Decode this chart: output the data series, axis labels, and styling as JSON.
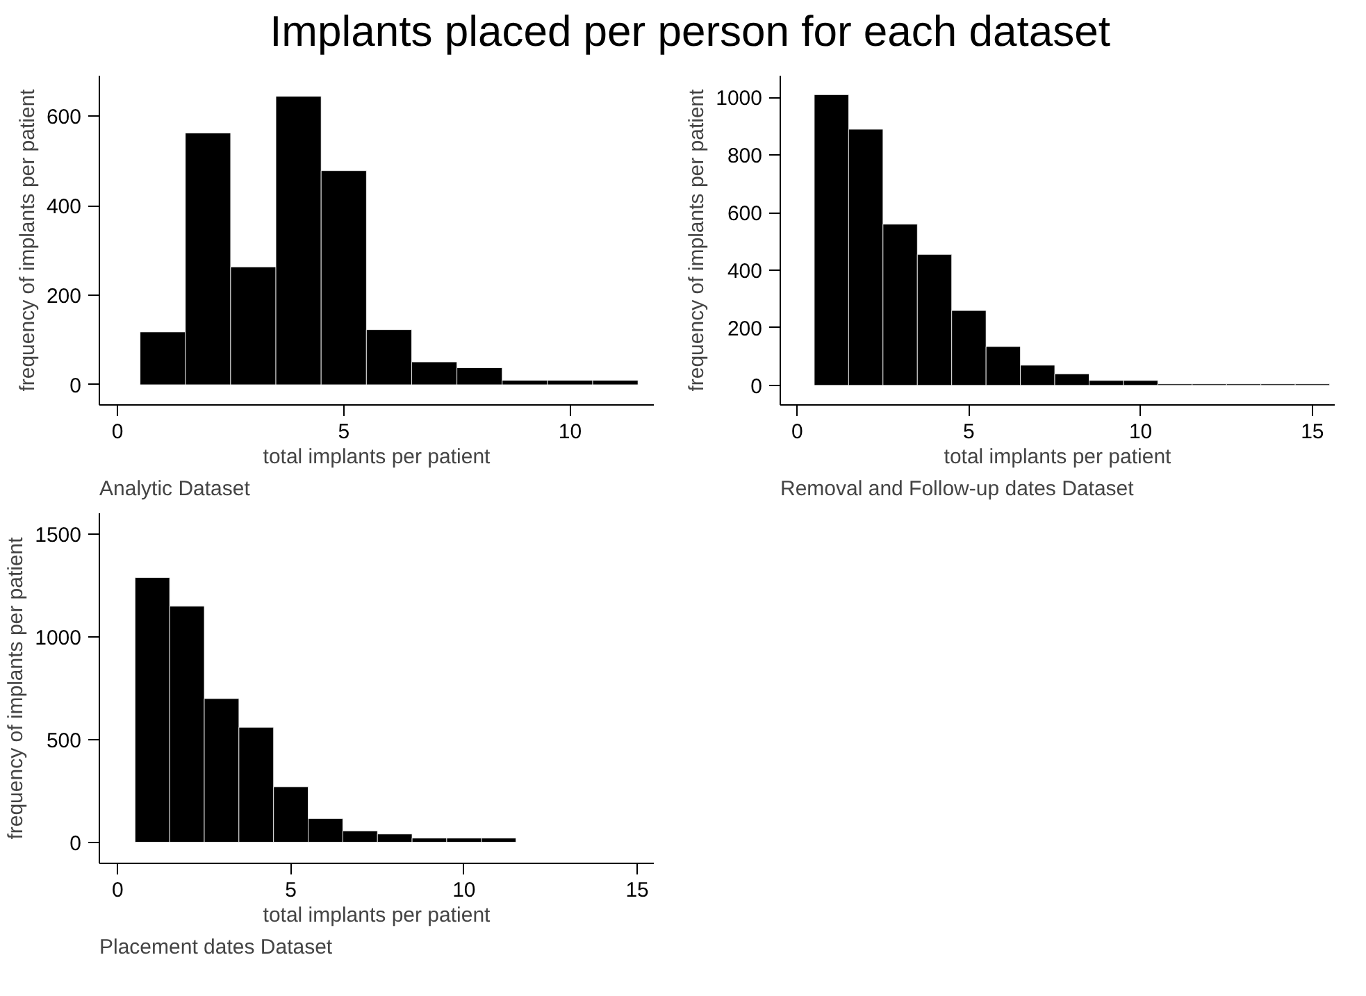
{
  "chart_data": [
    {
      "type": "histogram",
      "title": "Implants placed per person for each dataset",
      "xlabel": "total implants per patient",
      "ylabel": "frequency of implants per patient",
      "annotations": [
        "Analytic Dataset"
      ],
      "bins": [
        0.5,
        1.5,
        2.5,
        3.5,
        4.5,
        5.5,
        6.5,
        7.5,
        8.5,
        9.5,
        10.5,
        11.5
      ],
      "values": [
        118,
        562,
        263,
        644,
        478,
        123,
        51,
        38,
        10,
        10,
        10
      ],
      "color": "#000000",
      "xlim": [
        -0.4,
        11.85
      ],
      "xticks": [
        0,
        5,
        10
      ],
      "ylim": [
        -45,
        690
      ],
      "yticks": [
        0,
        200,
        400,
        600
      ],
      "grid": false
    },
    {
      "type": "histogram",
      "xlabel": "total implants per patient",
      "ylabel": "frequency of implants per patient",
      "annotations": [
        "Removal and Follow-up dates Dataset"
      ],
      "bins": [
        0.5,
        1.5,
        2.5,
        3.5,
        4.5,
        5.5,
        6.5,
        7.5,
        8.5,
        9.5,
        10.5,
        11.5,
        12.5,
        13.5,
        14.5,
        15.5
      ],
      "values": [
        1010,
        890,
        560,
        455,
        260,
        135,
        70,
        40,
        17,
        17,
        5,
        5,
        5,
        5,
        5
      ],
      "color": "#000000",
      "xlim": [
        -0.49,
        15.65
      ],
      "xticks": [
        0,
        5,
        10,
        15
      ],
      "ylim": [
        -68,
        1076
      ],
      "yticks": [
        0,
        200,
        400,
        600,
        800,
        1000
      ],
      "grid": false
    },
    {
      "type": "histogram",
      "xlabel": "total implants per patient",
      "ylabel": "frequency of implants per patient",
      "annotations": [
        "Placement dates Dataset"
      ],
      "bins": [
        0.5,
        1.5,
        2.5,
        3.5,
        4.5,
        5.5,
        6.5,
        7.5,
        8.5,
        9.5,
        10.5,
        11.5
      ],
      "values": [
        1290,
        1150,
        700,
        560,
        270,
        115,
        55,
        40,
        20,
        20,
        20
      ],
      "color": "#000000",
      "xlim": [
        -0.53,
        15.48
      ],
      "xticks": [
        0,
        5,
        10,
        15
      ],
      "ylim": [
        -103,
        1603
      ],
      "yticks": [
        0,
        500,
        1000,
        1500
      ],
      "grid": false
    }
  ]
}
